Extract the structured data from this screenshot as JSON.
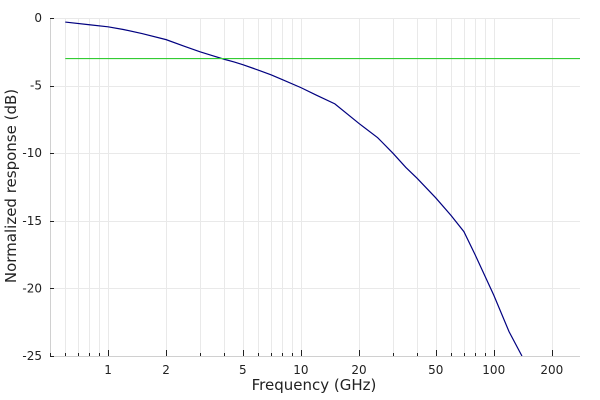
{
  "chart_data": {
    "type": "line",
    "xlabel": "Frequency (GHz)",
    "ylabel": "Normalized response (dB)",
    "xscale": "log",
    "xlim": [
      0.5,
      280
    ],
    "ylim": [
      -25,
      0
    ],
    "x_ticks": [
      1,
      2,
      5,
      10,
      20,
      50,
      100,
      200
    ],
    "x_tick_labels": [
      "1",
      "2",
      "5",
      "10",
      "20",
      "50",
      "100",
      "200"
    ],
    "y_ticks": [
      0,
      -5,
      -10,
      -15,
      -20,
      -25
    ],
    "y_tick_labels": [
      "0",
      "-5",
      "-10",
      "-15",
      "-20",
      "-25"
    ],
    "grid": true,
    "series": [
      {
        "color": "#000080",
        "x": [
          0.6,
          0.8,
          1.0,
          1.2,
          1.5,
          2.0,
          2.5,
          3.0,
          3.5,
          4.0,
          4.5,
          5.0,
          6.0,
          7.0,
          8.0,
          10.0,
          12.0,
          15.0,
          20.0,
          25.0,
          30.0,
          35.0,
          40.0,
          50.0,
          60.0,
          70.0,
          80.0,
          100.0,
          120.0,
          140.0
        ],
        "y": [
          -0.3,
          -0.5,
          -0.65,
          -0.85,
          -1.15,
          -1.6,
          -2.1,
          -2.5,
          -2.8,
          -3.05,
          -3.25,
          -3.45,
          -3.85,
          -4.2,
          -4.55,
          -5.15,
          -5.7,
          -6.35,
          -7.8,
          -8.85,
          -10.0,
          -11.05,
          -11.85,
          -13.3,
          -14.6,
          -15.8,
          -17.5,
          -20.5,
          -23.2,
          -25.0
        ]
      },
      {
        "color": "#33cc33",
        "x": [
          0.6,
          280
        ],
        "y": [
          -3.0,
          -3.0
        ]
      }
    ]
  }
}
